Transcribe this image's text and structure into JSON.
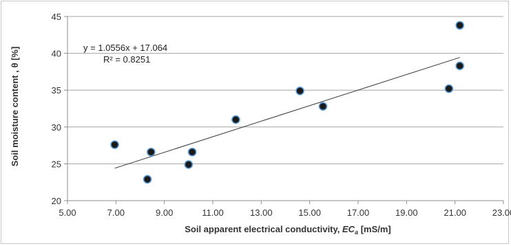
{
  "chart_data": {
    "type": "scatter",
    "xlabel_main": "Soil apparent electrical conductivity, ",
    "xlabel_var": "EC",
    "xlabel_sub": "a",
    "xlabel_unit": " [mS/m]",
    "ylabel": "Soil moisture content , θ [%]",
    "xlim": [
      5,
      23
    ],
    "ylim": [
      20,
      45
    ],
    "x_ticks": [
      "5.00",
      "7.00",
      "9.00",
      "11.00",
      "13.00",
      "15.00",
      "17.00",
      "19.00",
      "21.00",
      "23.00"
    ],
    "y_ticks": [
      "20",
      "25",
      "30",
      "35",
      "40",
      "45"
    ],
    "grid": "horizontal",
    "marker_color": "#1a1a1a",
    "marker_edge": "#5b9bd5",
    "points": [
      {
        "x": 6.95,
        "y": 27.6
      },
      {
        "x": 8.3,
        "y": 22.9
      },
      {
        "x": 8.45,
        "y": 26.6
      },
      {
        "x": 10.0,
        "y": 24.9
      },
      {
        "x": 10.15,
        "y": 26.6
      },
      {
        "x": 11.95,
        "y": 31.0
      },
      {
        "x": 14.6,
        "y": 34.9
      },
      {
        "x": 15.55,
        "y": 32.8
      },
      {
        "x": 20.75,
        "y": 35.2
      },
      {
        "x": 21.2,
        "y": 38.3
      },
      {
        "x": 21.2,
        "y": 43.8
      }
    ],
    "trendline": {
      "slope": 1.0556,
      "intercept": 17.064,
      "x_start": 6.95,
      "x_end": 21.2,
      "equation": "y = 1.0556x + 17.064",
      "r2": "R² = 0.8251"
    }
  }
}
